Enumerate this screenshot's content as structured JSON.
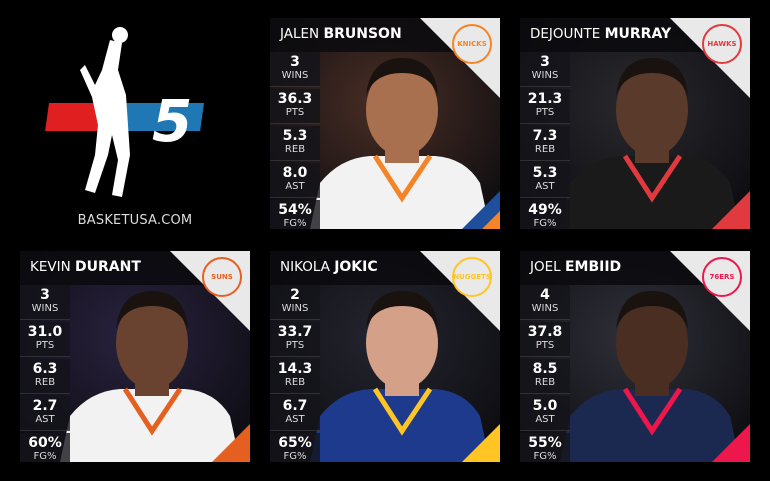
{
  "brand": {
    "site": "BASKETUSA.COM",
    "number": "5"
  },
  "players": [
    {
      "first": "JALEN",
      "last": "BRUNSON",
      "team": "KNICKS",
      "color1": "#f58426",
      "color2": "#1d4f9c",
      "bg": "#4a2e25",
      "jersey": "#f2f2f2",
      "skin": "#a8704f",
      "stats": [
        {
          "v": "3",
          "l": "WINS"
        },
        {
          "v": "36.3",
          "l": "PTS"
        },
        {
          "v": "5.3",
          "l": "REB"
        },
        {
          "v": "8.0",
          "l": "AST"
        },
        {
          "v": "54%",
          "l": "FG%"
        }
      ]
    },
    {
      "first": "DEJOUNTE",
      "last": "MURRAY",
      "team": "HAWKS",
      "color1": "#e03a3e",
      "color2": "#e03a3e",
      "bg": "#2a2a2e",
      "jersey": "#1a1a1a",
      "skin": "#5a3a2a",
      "stats": [
        {
          "v": "3",
          "l": "WINS"
        },
        {
          "v": "21.3",
          "l": "PTS"
        },
        {
          "v": "7.3",
          "l": "REB"
        },
        {
          "v": "5.3",
          "l": "AST"
        },
        {
          "v": "49%",
          "l": "FG%"
        }
      ]
    },
    {
      "first": "KEVIN",
      "last": "DURANT",
      "team": "SUNS",
      "color1": "#e56020",
      "color2": "#e56020",
      "bg": "#2a2240",
      "jersey": "#f2f2f2",
      "skin": "#6a4330",
      "stats": [
        {
          "v": "3",
          "l": "WINS"
        },
        {
          "v": "31.0",
          "l": "PTS"
        },
        {
          "v": "6.3",
          "l": "REB"
        },
        {
          "v": "2.7",
          "l": "AST"
        },
        {
          "v": "60%",
          "l": "FG%"
        }
      ]
    },
    {
      "first": "NIKOLA",
      "last": "JOKIC",
      "team": "NUGGETS",
      "color1": "#fec524",
      "color2": "#fec524",
      "bg": "#252530",
      "jersey": "#1d3a8c",
      "skin": "#d4a088",
      "stats": [
        {
          "v": "2",
          "l": "WINS"
        },
        {
          "v": "33.7",
          "l": "PTS"
        },
        {
          "v": "14.3",
          "l": "REB"
        },
        {
          "v": "6.7",
          "l": "AST"
        },
        {
          "v": "65%",
          "l": "FG%"
        }
      ]
    },
    {
      "first": "JOEL",
      "last": "EMBIID",
      "team": "76ERS",
      "color1": "#ed174c",
      "color2": "#ed174c",
      "bg": "#30303a",
      "jersey": "#1b2850",
      "skin": "#4a2e22",
      "stats": [
        {
          "v": "4",
          "l": "WINS"
        },
        {
          "v": "37.8",
          "l": "PTS"
        },
        {
          "v": "8.5",
          "l": "REB"
        },
        {
          "v": "5.0",
          "l": "AST"
        },
        {
          "v": "55%",
          "l": "FG%"
        }
      ]
    }
  ]
}
